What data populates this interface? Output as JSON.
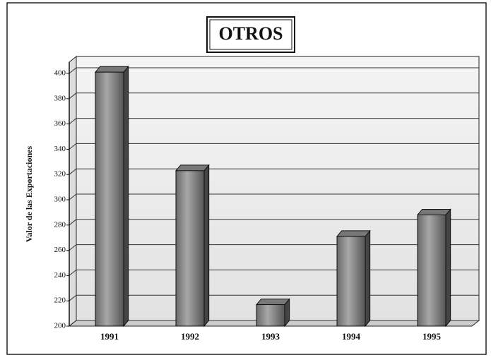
{
  "chart_data": {
    "type": "bar",
    "title": "OTROS",
    "y_label": "Valor de las Exportaciones",
    "categories": [
      "1991",
      "1992",
      "1993",
      "1994",
      "1995"
    ],
    "values": [
      401,
      323,
      217,
      271,
      288
    ],
    "color": "#8a8a8a",
    "ylim": [
      200,
      400
    ],
    "yticks": [
      200,
      220,
      240,
      260,
      280,
      300,
      320,
      340,
      360,
      380,
      400
    ],
    "grid": true
  }
}
